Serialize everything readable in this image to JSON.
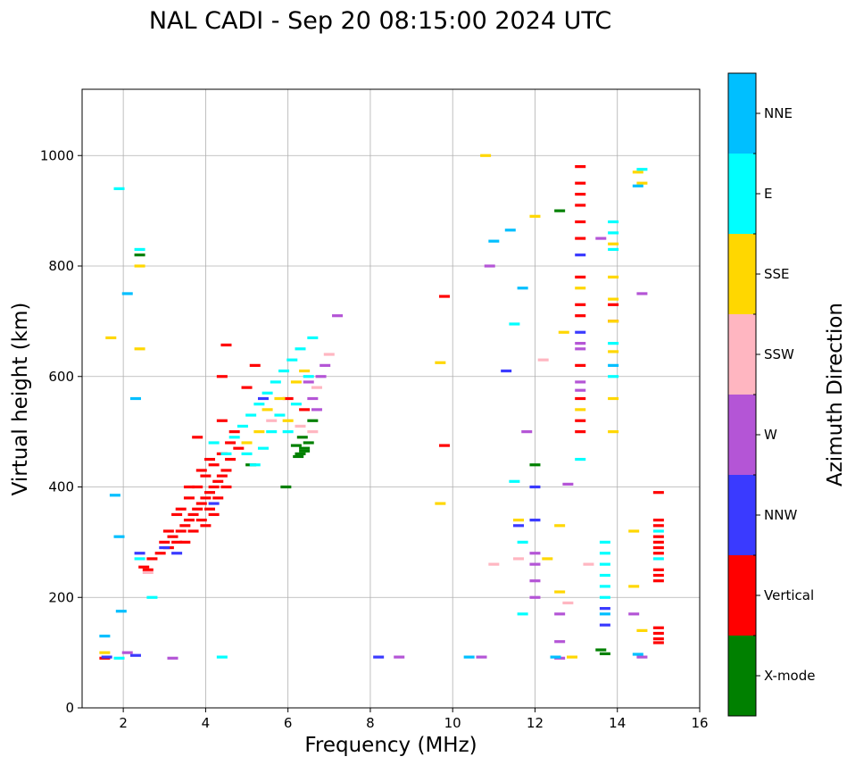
{
  "chart_data": {
    "type": "scatter",
    "title": "NAL CADI - Sep 20 08:15:00 2024 UTC",
    "xlabel": "Frequency (MHz)",
    "ylabel": "Virtual height (km)",
    "xlim": [
      1,
      16
    ],
    "ylim": [
      0,
      1120
    ],
    "xticks": [
      2,
      4,
      6,
      8,
      10,
      12,
      14,
      16
    ],
    "yticks": [
      0,
      200,
      400,
      600,
      800,
      1000
    ],
    "grid": true,
    "colorbar": {
      "label": "Azimuth Direction",
      "categories": [
        {
          "name": "X-mode",
          "color": "#008000"
        },
        {
          "name": "Vertical",
          "color": "#ff0000"
        },
        {
          "name": "NNW",
          "color": "#3a3aff"
        },
        {
          "name": "W",
          "color": "#b455d6"
        },
        {
          "name": "SSW",
          "color": "#ffb6c1"
        },
        {
          "name": "SSE",
          "color": "#ffd700"
        },
        {
          "name": "E",
          "color": "#00ffff"
        },
        {
          "name": "NNE",
          "color": "#00bfff"
        }
      ]
    },
    "series": [
      {
        "name": "X-mode",
        "points": [
          [
            6.3,
            460
          ],
          [
            6.4,
            470
          ],
          [
            6.5,
            480
          ],
          [
            6.2,
            475
          ],
          [
            6.35,
            490
          ],
          [
            5.95,
            400
          ],
          [
            6.4,
            465
          ],
          [
            6.25,
            455
          ],
          [
            13.6,
            105
          ],
          [
            13.7,
            98
          ],
          [
            12.0,
            440
          ],
          [
            12.6,
            900
          ],
          [
            2.4,
            820
          ],
          [
            5.1,
            440
          ],
          [
            6.6,
            520
          ]
        ]
      },
      {
        "name": "Vertical",
        "points": [
          [
            2.5,
            255
          ],
          [
            2.7,
            270
          ],
          [
            2.9,
            280
          ],
          [
            3.0,
            300
          ],
          [
            3.1,
            290
          ],
          [
            3.2,
            310
          ],
          [
            3.3,
            300
          ],
          [
            3.4,
            320
          ],
          [
            3.5,
            330
          ],
          [
            3.6,
            340
          ],
          [
            3.7,
            350
          ],
          [
            3.8,
            360
          ],
          [
            3.9,
            370
          ],
          [
            4.0,
            380
          ],
          [
            4.1,
            390
          ],
          [
            4.2,
            400
          ],
          [
            4.3,
            410
          ],
          [
            4.4,
            420
          ],
          [
            4.5,
            430
          ],
          [
            3.4,
            360
          ],
          [
            3.6,
            380
          ],
          [
            3.8,
            400
          ],
          [
            4.0,
            420
          ],
          [
            4.2,
            440
          ],
          [
            4.4,
            460
          ],
          [
            4.6,
            480
          ],
          [
            3.5,
            300
          ],
          [
            3.7,
            320
          ],
          [
            3.9,
            340
          ],
          [
            4.1,
            360
          ],
          [
            4.3,
            380
          ],
          [
            4.5,
            400
          ],
          [
            4.6,
            450
          ],
          [
            4.7,
            500
          ],
          [
            4.4,
            520
          ],
          [
            4.8,
            470
          ],
          [
            3.9,
            430
          ],
          [
            4.1,
            450
          ],
          [
            3.3,
            350
          ],
          [
            3.1,
            320
          ],
          [
            4.0,
            330
          ],
          [
            4.2,
            350
          ],
          [
            3.6,
            400
          ],
          [
            4.5,
            657
          ],
          [
            4.4,
            600
          ],
          [
            3.8,
            490
          ],
          [
            5.0,
            580
          ],
          [
            5.2,
            620
          ],
          [
            9.8,
            475
          ],
          [
            9.8,
            745
          ],
          [
            13.1,
            980
          ],
          [
            13.1,
            950
          ],
          [
            13.1,
            930
          ],
          [
            13.1,
            910
          ],
          [
            13.1,
            880
          ],
          [
            13.1,
            850
          ],
          [
            13.1,
            780
          ],
          [
            13.1,
            730
          ],
          [
            13.1,
            710
          ],
          [
            13.1,
            620
          ],
          [
            13.1,
            560
          ],
          [
            13.1,
            520
          ],
          [
            13.1,
            500
          ],
          [
            13.9,
            700
          ],
          [
            13.9,
            730
          ],
          [
            15.0,
            390
          ],
          [
            15.0,
            340
          ],
          [
            15.0,
            330
          ],
          [
            15.0,
            310
          ],
          [
            15.0,
            300
          ],
          [
            15.0,
            290
          ],
          [
            15.0,
            280
          ],
          [
            15.0,
            250
          ],
          [
            15.0,
            240
          ],
          [
            15.0,
            230
          ],
          [
            15.0,
            145
          ],
          [
            15.0,
            135
          ],
          [
            15.0,
            125
          ],
          [
            15.0,
            118
          ],
          [
            1.55,
            90
          ],
          [
            2.6,
            250
          ],
          [
            6.4,
            540
          ],
          [
            6.0,
            560
          ]
        ]
      },
      {
        "name": "NNW",
        "points": [
          [
            2.3,
            95
          ],
          [
            2.4,
            280
          ],
          [
            3.3,
            280
          ],
          [
            8.2,
            92
          ],
          [
            11.3,
            610
          ],
          [
            11.6,
            330
          ],
          [
            12.0,
            400
          ],
          [
            12.0,
            340
          ],
          [
            13.1,
            820
          ],
          [
            13.1,
            680
          ],
          [
            13.7,
            180
          ],
          [
            13.7,
            150
          ],
          [
            4.2,
            370
          ],
          [
            5.4,
            560
          ],
          [
            3.0,
            290
          ],
          [
            1.6,
            92
          ]
        ]
      },
      {
        "name": "W",
        "points": [
          [
            2.1,
            100
          ],
          [
            3.2,
            90
          ],
          [
            6.6,
            560
          ],
          [
            6.7,
            540
          ],
          [
            6.8,
            600
          ],
          [
            6.9,
            620
          ],
          [
            6.5,
            590
          ],
          [
            7.2,
            710
          ],
          [
            8.7,
            92
          ],
          [
            10.7,
            92
          ],
          [
            10.9,
            800
          ],
          [
            11.8,
            500
          ],
          [
            12.0,
            280
          ],
          [
            12.0,
            260
          ],
          [
            12.0,
            230
          ],
          [
            12.0,
            200
          ],
          [
            12.6,
            90
          ],
          [
            12.6,
            120
          ],
          [
            12.6,
            170
          ],
          [
            12.8,
            405
          ],
          [
            13.1,
            590
          ],
          [
            13.1,
            575
          ],
          [
            13.1,
            650
          ],
          [
            13.1,
            660
          ],
          [
            13.6,
            850
          ],
          [
            14.4,
            170
          ],
          [
            14.6,
            750
          ],
          [
            14.6,
            92
          ]
        ]
      },
      {
        "name": "SSW",
        "points": [
          [
            2.6,
            245
          ],
          [
            5.6,
            520
          ],
          [
            6.3,
            510
          ],
          [
            6.6,
            500
          ],
          [
            6.7,
            580
          ],
          [
            7.0,
            640
          ],
          [
            12.2,
            630
          ],
          [
            12.8,
            190
          ],
          [
            13.3,
            260
          ],
          [
            11.6,
            270
          ],
          [
            11.0,
            260
          ]
        ]
      },
      {
        "name": "SSE",
        "points": [
          [
            1.55,
            100
          ],
          [
            1.7,
            670
          ],
          [
            2.4,
            650
          ],
          [
            2.4,
            800
          ],
          [
            5.0,
            480
          ],
          [
            5.3,
            500
          ],
          [
            5.5,
            540
          ],
          [
            5.8,
            560
          ],
          [
            6.0,
            520
          ],
          [
            6.2,
            590
          ],
          [
            6.4,
            610
          ],
          [
            10.8,
            1000
          ],
          [
            11.6,
            340
          ],
          [
            12.0,
            890
          ],
          [
            12.3,
            270
          ],
          [
            12.6,
            330
          ],
          [
            12.6,
            210
          ],
          [
            12.7,
            680
          ],
          [
            12.9,
            92
          ],
          [
            13.1,
            760
          ],
          [
            13.1,
            540
          ],
          [
            13.9,
            840
          ],
          [
            13.9,
            780
          ],
          [
            13.9,
            740
          ],
          [
            13.9,
            700
          ],
          [
            13.9,
            645
          ],
          [
            13.9,
            560
          ],
          [
            13.9,
            500
          ],
          [
            14.5,
            970
          ],
          [
            14.6,
            950
          ],
          [
            14.4,
            320
          ],
          [
            14.4,
            220
          ],
          [
            14.6,
            140
          ],
          [
            9.7,
            370
          ],
          [
            9.7,
            625
          ]
        ]
      },
      {
        "name": "E",
        "points": [
          [
            1.9,
            90
          ],
          [
            2.4,
            270
          ],
          [
            2.4,
            830
          ],
          [
            4.2,
            480
          ],
          [
            4.5,
            460
          ],
          [
            4.7,
            490
          ],
          [
            4.9,
            510
          ],
          [
            5.1,
            530
          ],
          [
            5.3,
            550
          ],
          [
            5.5,
            570
          ],
          [
            5.7,
            590
          ],
          [
            5.9,
            610
          ],
          [
            6.1,
            630
          ],
          [
            6.3,
            650
          ],
          [
            5.0,
            460
          ],
          [
            5.2,
            440
          ],
          [
            5.4,
            470
          ],
          [
            5.6,
            500
          ],
          [
            5.8,
            530
          ],
          [
            6.0,
            500
          ],
          [
            6.2,
            550
          ],
          [
            6.5,
            600
          ],
          [
            6.6,
            670
          ],
          [
            4.4,
            92
          ],
          [
            11.5,
            695
          ],
          [
            11.5,
            410
          ],
          [
            11.7,
            300
          ],
          [
            11.7,
            170
          ],
          [
            13.1,
            450
          ],
          [
            13.7,
            300
          ],
          [
            13.7,
            280
          ],
          [
            13.7,
            260
          ],
          [
            13.7,
            240
          ],
          [
            13.7,
            220
          ],
          [
            13.7,
            200
          ],
          [
            13.9,
            880
          ],
          [
            13.9,
            860
          ],
          [
            13.9,
            830
          ],
          [
            13.9,
            660
          ],
          [
            13.9,
            600
          ],
          [
            15.0,
            320
          ],
          [
            15.0,
            270
          ],
          [
            14.6,
            975
          ],
          [
            1.9,
            940
          ],
          [
            2.7,
            200
          ]
        ]
      },
      {
        "name": "NNE",
        "points": [
          [
            1.55,
            130
          ],
          [
            1.8,
            385
          ],
          [
            1.95,
            175
          ],
          [
            2.1,
            750
          ],
          [
            2.3,
            560
          ],
          [
            10.4,
            92
          ],
          [
            11.0,
            845
          ],
          [
            11.4,
            865
          ],
          [
            11.7,
            760
          ],
          [
            12.5,
            92
          ],
          [
            13.9,
            620
          ],
          [
            14.5,
            945
          ],
          [
            14.5,
            97
          ],
          [
            13.7,
            170
          ],
          [
            1.9,
            310
          ]
        ]
      }
    ]
  }
}
